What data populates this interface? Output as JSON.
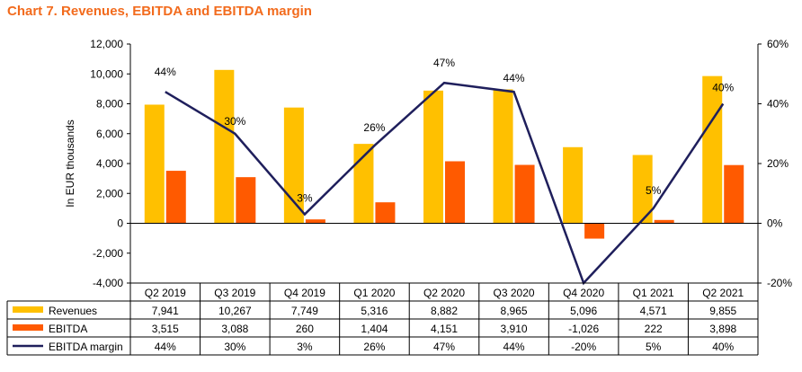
{
  "title": "Chart 7. Revenues, EBITDA and EBITDA margin",
  "colors": {
    "title": "#f26b1d",
    "revenues": "#ffc000",
    "ebitda": "#ff5a00",
    "margin": "#1f1f5c"
  },
  "chart_data": {
    "type": "bar",
    "title": "Chart 7. Revenues, EBITDA and EBITDA margin",
    "categories": [
      "Q2 2019",
      "Q3 2019",
      "Q4 2019",
      "Q1 2020",
      "Q2 2020",
      "Q3 2020",
      "Q4 2020",
      "Q1 2021",
      "Q2 2021"
    ],
    "ylabel": "In EUR thousands",
    "ylim": [
      -4000,
      12000
    ],
    "yticks": [
      -4000,
      -2000,
      0,
      2000,
      4000,
      6000,
      8000,
      10000,
      12000
    ],
    "ytick_labels": [
      "-4,000",
      "-2,000",
      "0",
      "2,000",
      "4,000",
      "6,000",
      "8,000",
      "10,000",
      "12,000"
    ],
    "y2lim": [
      -20,
      60
    ],
    "y2ticks": [
      -20,
      0,
      20,
      40,
      60
    ],
    "y2tick_labels": [
      "-20%",
      "0%",
      "20%",
      "40%",
      "60%"
    ],
    "grid": false,
    "legend": "data table below chart",
    "series": [
      {
        "name": "Revenues",
        "type": "bar",
        "axis": "left",
        "values": [
          7941,
          10267,
          7749,
          5316,
          8882,
          8965,
          5096,
          4571,
          9855
        ],
        "labels": [
          "7,941",
          "10,267",
          "7,749",
          "5,316",
          "8,882",
          "8,965",
          "5,096",
          "4,571",
          "9,855"
        ]
      },
      {
        "name": "EBITDA",
        "type": "bar",
        "axis": "left",
        "values": [
          3515,
          3088,
          260,
          1404,
          4151,
          3910,
          -1026,
          222,
          3898
        ],
        "labels": [
          "3,515",
          "3,088",
          "260",
          "1,404",
          "4,151",
          "3,910",
          "-1,026",
          "222",
          "3,898"
        ]
      },
      {
        "name": "EBITDA margin",
        "type": "line",
        "axis": "right",
        "values": [
          44,
          30,
          3,
          26,
          47,
          44,
          -20,
          5,
          40
        ],
        "labels": [
          "44%",
          "30%",
          "3%",
          "26%",
          "47%",
          "44%",
          "-20%",
          "5%",
          "40%"
        ]
      }
    ]
  }
}
